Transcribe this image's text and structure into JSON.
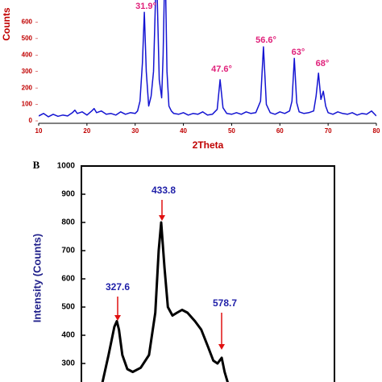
{
  "chart_data": [
    {
      "type": "line",
      "xlabel": "2Theta",
      "ylabel": "Counts",
      "x": [
        10,
        11,
        12,
        13,
        14,
        15,
        16,
        17,
        17.5,
        18,
        19,
        20,
        21,
        21.5,
        22,
        23,
        24,
        25,
        26,
        27,
        28,
        29,
        30,
        30.5,
        31,
        31.5,
        31.9,
        32.3,
        32.8,
        33.3,
        33.8,
        34.4,
        35,
        35.5,
        35.8,
        36.2,
        36.6,
        37,
        37.5,
        38,
        39,
        40,
        41,
        42,
        43,
        44,
        45,
        46,
        47,
        47.6,
        48.2,
        49,
        50,
        51,
        52,
        53,
        54,
        55,
        56,
        56.6,
        57.2,
        58,
        59,
        60,
        61,
        62,
        62.5,
        63,
        63.5,
        64,
        65,
        66,
        67,
        67.5,
        68,
        68.5,
        69,
        69.5,
        70,
        71,
        72,
        73,
        74,
        75,
        76,
        77,
        78,
        79,
        80
      ],
      "series": [
        {
          "color": "#1414d2",
          "values": [
            30,
            45,
            25,
            40,
            28,
            35,
            30,
            50,
            65,
            45,
            55,
            35,
            60,
            75,
            50,
            60,
            40,
            45,
            35,
            55,
            40,
            50,
            45,
            60,
            120,
            350,
            660,
            300,
            90,
            150,
            300,
            950,
            250,
            140,
            400,
            1000,
            300,
            90,
            60,
            45,
            40,
            50,
            35,
            45,
            40,
            55,
            35,
            40,
            70,
            250,
            80,
            45,
            40,
            50,
            40,
            55,
            45,
            50,
            120,
            450,
            100,
            50,
            40,
            55,
            45,
            60,
            120,
            380,
            110,
            55,
            45,
            50,
            60,
            150,
            290,
            130,
            180,
            90,
            50,
            40,
            55,
            45,
            40,
            50,
            35,
            45,
            40,
            60,
            30
          ]
        }
      ],
      "xlim": [
        10,
        80
      ],
      "xticks": [
        10,
        20,
        30,
        40,
        50,
        60,
        70,
        80
      ],
      "ylim": [
        0,
        700
      ],
      "yticks": [
        0,
        100,
        200,
        300,
        400,
        500,
        600
      ],
      "annotations": [
        "31.9°",
        "47.6°",
        "56.6°",
        "63°",
        "68°"
      ]
    },
    {
      "type": "line",
      "panel_label": "B",
      "ylabel": "Intensity (Counts)",
      "x": [
        293,
        308,
        322,
        328,
        333,
        341,
        353,
        366,
        385,
        405,
        420,
        428,
        434,
        442,
        450,
        461,
        472,
        484,
        497,
        515,
        530,
        546,
        559,
        569,
        579,
        586,
        596
      ],
      "series": [
        {
          "color": "#000000",
          "values": [
            230,
            330,
            430,
            450,
            420,
            330,
            280,
            270,
            285,
            330,
            480,
            700,
            800,
            640,
            500,
            470,
            480,
            490,
            480,
            450,
            420,
            360,
            310,
            300,
            320,
            270,
            220
          ]
        }
      ],
      "xlim": [
        243,
        849
      ],
      "ylim": [
        200,
        1000
      ],
      "yticks": [
        300,
        400,
        500,
        600,
        700,
        800,
        900,
        1000
      ],
      "annotations": [
        "327.6",
        "433.8",
        "578.7"
      ]
    }
  ]
}
